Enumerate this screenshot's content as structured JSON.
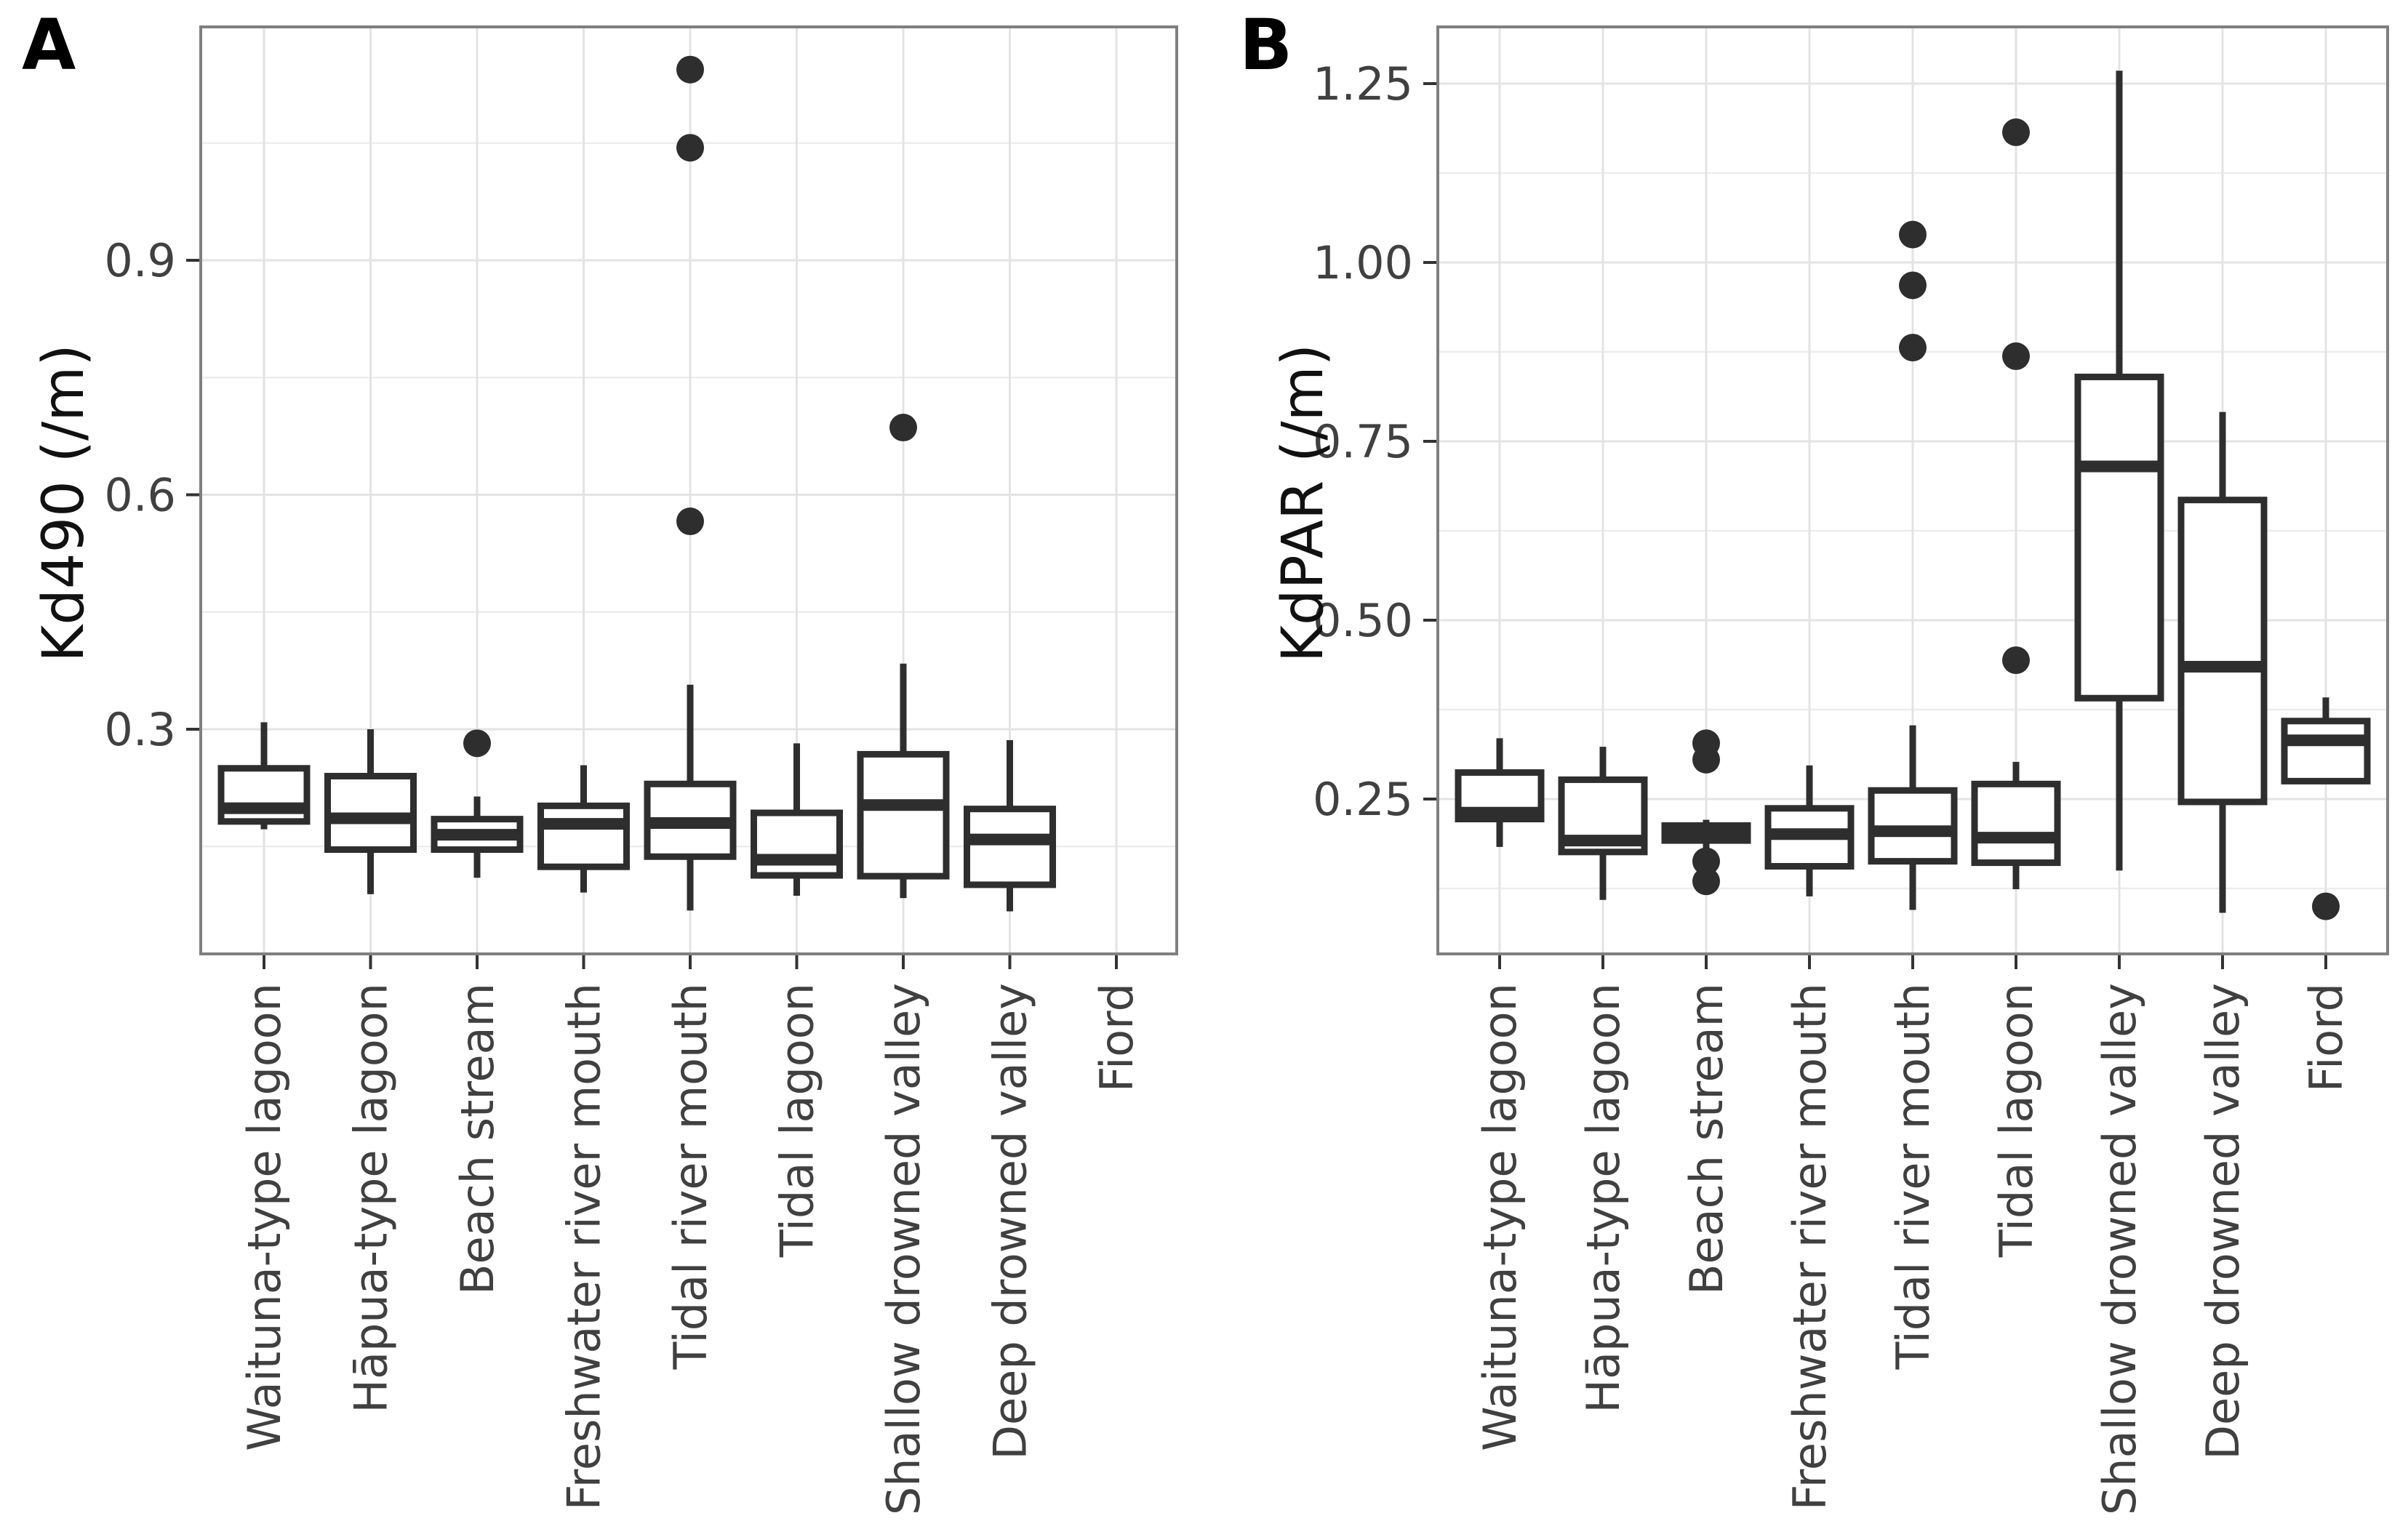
{
  "figure": {
    "kind": "two-panel boxplot figure",
    "background_color": "#ffffff"
  },
  "colors": {
    "box_ink": "#2e2e2e",
    "grid_major": "#e3e3e3",
    "grid_minor": "#ececec",
    "panel_border": "#7f7f7f",
    "tick_mark": "#333333",
    "tick_label_text": "#404040",
    "axis_title_text": "#111111",
    "panel_letter_text": "#000000"
  },
  "categories": [
    "Waituna-type lagoon",
    "Hāpua-type lagoon",
    "Beach stream",
    "Freshwater river mouth",
    "Tidal river mouth",
    "Tidal lagoon",
    "Shallow drowned valley",
    "Deep drowned valley",
    "Fiord"
  ],
  "chart_data": [
    {
      "type": "bar",
      "subtype": "boxplot",
      "panel_label": "A",
      "ylabel": "Kd490 (/m)",
      "xlabel": "",
      "y_breaks": [
        0.3,
        0.6,
        0.9
      ],
      "y_break_labels": [
        "0.3",
        "0.6",
        "0.9"
      ],
      "y_minor_breaks": [
        0.15,
        0.45,
        0.75,
        1.05
      ],
      "ylim": [
        0.01,
        1.2
      ],
      "grid": "on",
      "legend": "none",
      "categories": [
        "Waituna-type lagoon",
        "Hāpua-type lagoon",
        "Beach stream",
        "Freshwater river mouth",
        "Tidal river mouth",
        "Tidal lagoon",
        "Shallow drowned valley",
        "Deep drowned valley",
        "Fiord"
      ],
      "boxes": [
        {
          "category": "Waituna-type lagoon",
          "has_data": true,
          "whisker_low": 0.172,
          "q1": 0.182,
          "median": 0.199,
          "q3": 0.25,
          "whisker_high": 0.309,
          "outliers": []
        },
        {
          "category": "Hāpua-type lagoon",
          "has_data": true,
          "whisker_low": 0.089,
          "q1": 0.146,
          "median": 0.186,
          "q3": 0.24,
          "whisker_high": 0.3,
          "outliers": []
        },
        {
          "category": "Beach stream",
          "has_data": true,
          "whisker_low": 0.11,
          "q1": 0.146,
          "median": 0.165,
          "q3": 0.185,
          "whisker_high": 0.214,
          "outliers": [
            0.282
          ]
        },
        {
          "category": "Freshwater river mouth",
          "has_data": true,
          "whisker_low": 0.091,
          "q1": 0.124,
          "median": 0.179,
          "q3": 0.202,
          "whisker_high": 0.254,
          "outliers": []
        },
        {
          "category": "Tidal river mouth",
          "has_data": true,
          "whisker_low": 0.068,
          "q1": 0.137,
          "median": 0.18,
          "q3": 0.23,
          "whisker_high": 0.357,
          "outliers": [
            0.566,
            1.044,
            1.144
          ]
        },
        {
          "category": "Tidal lagoon",
          "has_data": true,
          "whisker_low": 0.087,
          "q1": 0.113,
          "median": 0.133,
          "q3": 0.193,
          "whisker_high": 0.282,
          "outliers": []
        },
        {
          "category": "Shallow drowned valley",
          "has_data": true,
          "whisker_low": 0.084,
          "q1": 0.112,
          "median": 0.203,
          "q3": 0.268,
          "whisker_high": 0.384,
          "outliers": [
            0.686
          ]
        },
        {
          "category": "Deep drowned valley",
          "has_data": true,
          "whisker_low": 0.067,
          "q1": 0.101,
          "median": 0.159,
          "q3": 0.198,
          "whisker_high": 0.286,
          "outliers": []
        },
        {
          "category": "Fiord",
          "has_data": false,
          "outliers": []
        }
      ]
    },
    {
      "type": "bar",
      "subtype": "boxplot",
      "panel_label": "B",
      "ylabel": "KdPAR (/m)",
      "xlabel": "",
      "y_breaks": [
        0.25,
        0.5,
        0.75,
        1.0,
        1.25
      ],
      "y_break_labels": [
        "0.25",
        "0.50",
        "0.75",
        "1.00",
        "1.25"
      ],
      "y_minor_breaks": [
        0.125,
        0.375,
        0.625,
        0.875,
        1.125
      ],
      "ylim": [
        0.03,
        1.33
      ],
      "grid": "on",
      "legend": "none",
      "categories": [
        "Waituna-type lagoon",
        "Hāpua-type lagoon",
        "Beach stream",
        "Freshwater river mouth",
        "Tidal river mouth",
        "Tidal lagoon",
        "Shallow drowned valley",
        "Deep drowned valley",
        "Fiord"
      ],
      "boxes": [
        {
          "category": "Waituna-type lagoon",
          "has_data": true,
          "whisker_low": 0.183,
          "q1": 0.222,
          "median": 0.231,
          "q3": 0.287,
          "whisker_high": 0.335,
          "outliers": []
        },
        {
          "category": "Hāpua-type lagoon",
          "has_data": true,
          "whisker_low": 0.109,
          "q1": 0.176,
          "median": 0.192,
          "q3": 0.277,
          "whisker_high": 0.323,
          "outliers": []
        },
        {
          "category": "Beach stream",
          "has_data": true,
          "whisker_low": 0.18,
          "q1": 0.192,
          "median": 0.202,
          "q3": 0.213,
          "whisker_high": 0.221,
          "outliers": [
            0.135,
            0.163,
            0.305,
            0.328
          ]
        },
        {
          "category": "Freshwater river mouth",
          "has_data": true,
          "whisker_low": 0.114,
          "q1": 0.156,
          "median": 0.201,
          "q3": 0.237,
          "whisker_high": 0.297,
          "outliers": []
        },
        {
          "category": "Tidal river mouth",
          "has_data": true,
          "whisker_low": 0.095,
          "q1": 0.163,
          "median": 0.205,
          "q3": 0.262,
          "whisker_high": 0.353,
          "outliers": [
            0.881,
            0.968,
            1.039
          ]
        },
        {
          "category": "Tidal lagoon",
          "has_data": true,
          "whisker_low": 0.124,
          "q1": 0.161,
          "median": 0.196,
          "q3": 0.271,
          "whisker_high": 0.302,
          "outliers": [
            0.444,
            0.869,
            1.182
          ]
        },
        {
          "category": "Shallow drowned valley",
          "has_data": true,
          "whisker_low": 0.15,
          "q1": 0.391,
          "median": 0.715,
          "q3": 0.84,
          "whisker_high": 1.268,
          "outliers": []
        },
        {
          "category": "Deep drowned valley",
          "has_data": true,
          "whisker_low": 0.091,
          "q1": 0.246,
          "median": 0.435,
          "q3": 0.668,
          "whisker_high": 0.791,
          "outliers": []
        },
        {
          "category": "Fiord",
          "has_data": true,
          "whisker_low": 0.275,
          "q1": 0.275,
          "median": 0.332,
          "q3": 0.359,
          "whisker_high": 0.392,
          "outliers": [
            0.1
          ]
        }
      ]
    }
  ]
}
